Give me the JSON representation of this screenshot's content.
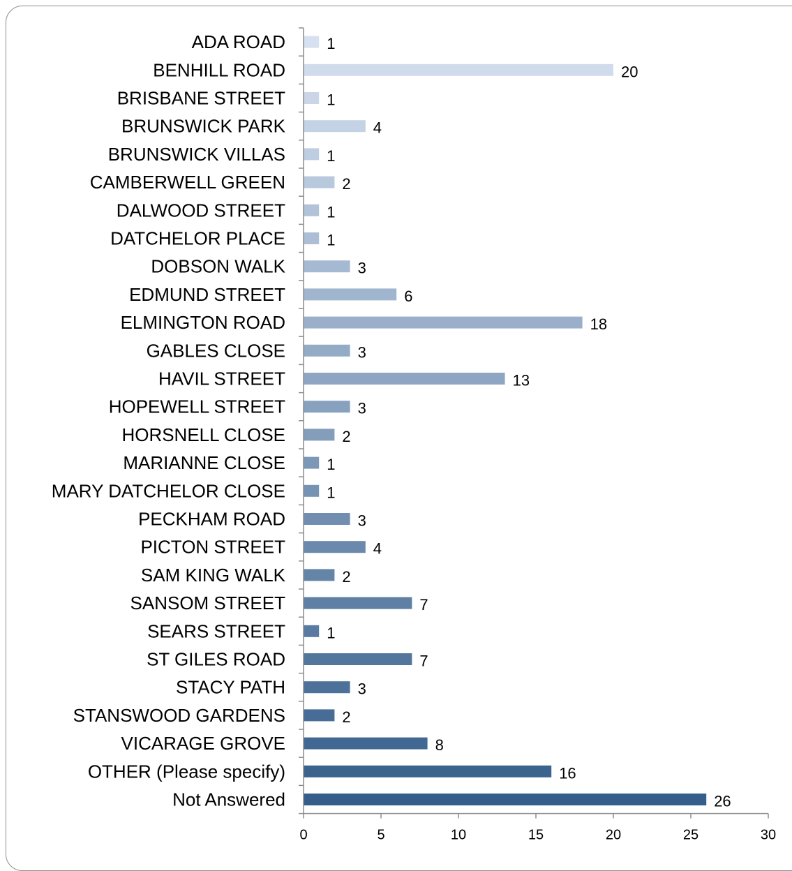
{
  "chart_data": {
    "type": "bar",
    "orientation": "horizontal",
    "categories": [
      "ADA ROAD",
      "BENHILL ROAD",
      "BRISBANE STREET",
      "BRUNSWICK PARK",
      "BRUNSWICK VILLAS",
      "CAMBERWELL GREEN",
      "DALWOOD STREET",
      "DATCHELOR PLACE",
      "DOBSON WALK",
      "EDMUND STREET",
      "ELMINGTON ROAD",
      "GABLES CLOSE",
      "HAVIL STREET",
      "HOPEWELL STREET",
      "HORSNELL CLOSE",
      "MARIANNE CLOSE",
      "MARY DATCHELOR CLOSE",
      "PECKHAM ROAD",
      "PICTON STREET",
      "SAM KING WALK",
      "SANSOM STREET",
      "SEARS STREET",
      "ST GILES ROAD",
      "STACY PATH",
      "STANSWOOD GARDENS",
      "VICARAGE GROVE",
      "OTHER (Please specify)",
      "Not Answered"
    ],
    "values": [
      1,
      20,
      1,
      4,
      1,
      2,
      1,
      1,
      3,
      6,
      18,
      3,
      13,
      3,
      2,
      1,
      1,
      3,
      4,
      2,
      7,
      1,
      7,
      3,
      2,
      8,
      16,
      26
    ],
    "xlim": [
      0,
      30
    ],
    "xticks": [
      "0",
      "5",
      "10",
      "15",
      "20",
      "25",
      "30"
    ],
    "grid": false,
    "legend": "none",
    "colors": {
      "bar_start": "#d6e0f0",
      "bar_end": "#355e8a",
      "axis": "#8c8c8c",
      "frame": "#8c8c8c"
    }
  }
}
